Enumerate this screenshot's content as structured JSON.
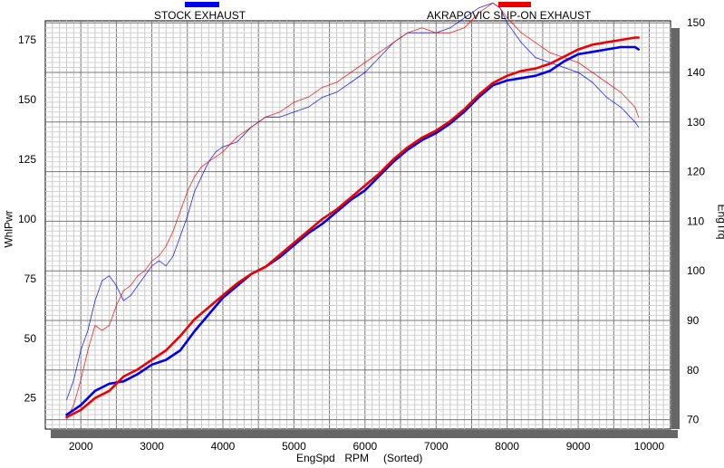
{
  "chart_data": {
    "type": "line",
    "xlabel": "EngSpd  RPM   (Sorted)",
    "ylabel_left": "WhlPwr",
    "ylabel_right": "EngTrq",
    "x_range": [
      1500,
      10300
    ],
    "x_ticks": [
      2000,
      3000,
      4000,
      5000,
      6000,
      7000,
      8000,
      9000,
      10000
    ],
    "y_left_range": [
      12,
      183
    ],
    "y_left_ticks": [
      25,
      50,
      75,
      100,
      125,
      150,
      175
    ],
    "y_right_range": [
      68.1,
      150.4
    ],
    "y_right_ticks": [
      70,
      80,
      90,
      100,
      110,
      120,
      130,
      140,
      150
    ],
    "grid": true,
    "legend": [
      {
        "name": "STOCK EXHAUST",
        "color": "#0000ee"
      },
      {
        "name": "AKRAPOVIC SLIP-ON EXHAUST",
        "color": "#ee0000"
      }
    ],
    "series": [
      {
        "name": "STOCK EXHAUST",
        "measure": "WhlPwr",
        "axis": "left",
        "color": "#0000ee",
        "x": [
          1800,
          2000,
          2200,
          2400,
          2600,
          2800,
          3000,
          3200,
          3400,
          3600,
          3800,
          4000,
          4200,
          4400,
          4600,
          4800,
          5000,
          5200,
          5400,
          5600,
          5800,
          6000,
          6200,
          6400,
          6600,
          6800,
          7000,
          7200,
          7400,
          7600,
          7800,
          8000,
          8200,
          8400,
          8600,
          8800,
          9000,
          9200,
          9400,
          9600,
          9800,
          9850
        ],
        "y": [
          18,
          22,
          28,
          31,
          32,
          35,
          39,
          41,
          45,
          53,
          60,
          67,
          72,
          77,
          80,
          84,
          89,
          94,
          98,
          103,
          108,
          112,
          118,
          124,
          129,
          133,
          136,
          140,
          145,
          151,
          156,
          158,
          159,
          160,
          162,
          166,
          169,
          170,
          171,
          172,
          172,
          171
        ]
      },
      {
        "name": "AKRAPOVIC SLIP-ON EXHAUST",
        "measure": "WhlPwr",
        "axis": "left",
        "color": "#ee0000",
        "x": [
          1800,
          2000,
          2200,
          2400,
          2600,
          2800,
          3000,
          3200,
          3400,
          3600,
          3800,
          4000,
          4200,
          4400,
          4600,
          4800,
          5000,
          5200,
          5400,
          5600,
          5800,
          6000,
          6200,
          6400,
          6600,
          6800,
          7000,
          7200,
          7400,
          7600,
          7800,
          8000,
          8200,
          8400,
          8600,
          8800,
          9000,
          9200,
          9400,
          9600,
          9800,
          9850
        ],
        "y": [
          17,
          20,
          25,
          28,
          34,
          37,
          41,
          45,
          51,
          58,
          63,
          68,
          73,
          77,
          80,
          85,
          90,
          95,
          100,
          104,
          109,
          114,
          119,
          125,
          130,
          134,
          137,
          141,
          146,
          152,
          157,
          160,
          162,
          163,
          165,
          168,
          171,
          173,
          174,
          175,
          176,
          176
        ]
      },
      {
        "name": "STOCK EXHAUST",
        "measure": "EngTrq",
        "axis": "right",
        "color": "#0000ee",
        "x": [
          1800,
          1900,
          2000,
          2100,
          2200,
          2300,
          2400,
          2500,
          2600,
          2700,
          2800,
          2900,
          3000,
          3100,
          3200,
          3300,
          3400,
          3500,
          3600,
          3700,
          3800,
          3900,
          4000,
          4200,
          4400,
          4600,
          4800,
          5000,
          5200,
          5400,
          5600,
          5800,
          6000,
          6200,
          6400,
          6600,
          6800,
          7000,
          7200,
          7400,
          7600,
          7800,
          7900,
          8000,
          8200,
          8400,
          8600,
          8800,
          9000,
          9200,
          9400,
          9600,
          9800,
          9850
        ],
        "y": [
          74,
          78,
          84,
          88,
          94,
          98,
          99,
          97,
          94,
          95,
          97,
          99,
          101,
          102,
          101,
          103,
          107,
          111,
          116,
          119,
          122,
          124,
          125,
          126,
          129,
          131,
          131,
          132,
          133,
          135,
          136,
          138,
          140,
          143,
          146,
          148,
          148,
          148,
          149,
          151,
          153,
          154,
          153,
          150,
          146,
          143,
          142,
          141,
          140,
          138,
          135,
          133,
          130,
          129
        ]
      },
      {
        "name": "AKRAPOVIC SLIP-ON EXHAUST",
        "measure": "EngTrq",
        "axis": "right",
        "color": "#ee0000",
        "x": [
          1800,
          1900,
          2000,
          2100,
          2200,
          2300,
          2400,
          2500,
          2600,
          2700,
          2800,
          2900,
          3000,
          3100,
          3200,
          3300,
          3400,
          3500,
          3600,
          3700,
          3800,
          3900,
          4000,
          4200,
          4400,
          4600,
          4800,
          5000,
          5200,
          5400,
          5600,
          5800,
          6000,
          6200,
          6400,
          6600,
          6800,
          7000,
          7200,
          7400,
          7600,
          7800,
          7900,
          8000,
          8200,
          8400,
          8600,
          8800,
          9000,
          9200,
          9400,
          9600,
          9800,
          9850
        ],
        "y": [
          70,
          73,
          78,
          84,
          89,
          88,
          89,
          93,
          96,
          97,
          99,
          100,
          102,
          103,
          105,
          108,
          112,
          116,
          119,
          121,
          122,
          123,
          124,
          127,
          129,
          131,
          132,
          134,
          135,
          137,
          138,
          140,
          142,
          144,
          146,
          148,
          149,
          148,
          148,
          149,
          152,
          154,
          153,
          151,
          148,
          146,
          144,
          143,
          142,
          140,
          138,
          136,
          133,
          131
        ]
      }
    ]
  }
}
